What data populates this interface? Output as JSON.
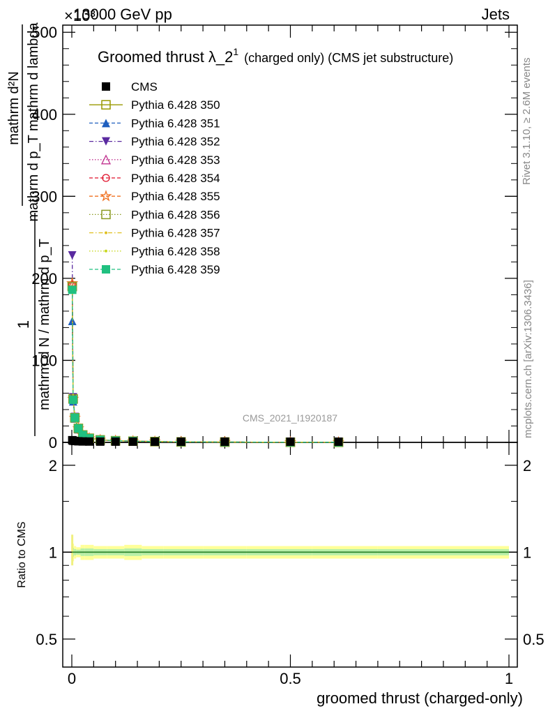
{
  "header": {
    "energy": "13000 GeV pp",
    "category": "Jets",
    "exponent": "×10³"
  },
  "side_labels": {
    "rivet": "Rivet 3.1.10, ≥ 2.6M events",
    "mcplots": "mcplots.cern.ch [arXiv:1306.3436]"
  },
  "watermark": "CMS_2021_I1920187",
  "main_plot": {
    "title": "Groomed thrust",
    "title_lambda": "λ_2",
    "title_sup": "1",
    "title_suffix": "(charged only) (CMS jet substructure)",
    "ylabel_numerator": "mathrm d²N",
    "ylabel_denominator": "mathrm d p_T mathrm d lambda",
    "ylabel_prefix_num": "1",
    "ylabel_prefix_den": "mathrm d N / mathrm d p_T",
    "yticks": [
      "0",
      "100",
      "200",
      "300",
      "400",
      "500"
    ]
  },
  "ratio_plot": {
    "ylabel": "Ratio to CMS",
    "yticks": [
      "0.5",
      "1",
      "2"
    ],
    "xticks": [
      "0",
      "0.5",
      "1"
    ],
    "xlabel": "groomed thrust (charged-only)"
  },
  "legend": [
    {
      "label": "CMS",
      "color": "#000000",
      "marker": "square-filled",
      "dash": "none"
    },
    {
      "label": "Pythia 6.428 350",
      "color": "#999900",
      "marker": "square-open",
      "dash": "solid"
    },
    {
      "label": "Pythia 6.428 351",
      "color": "#1f5fbf",
      "marker": "triangle-up-filled",
      "dash": "dashed"
    },
    {
      "label": "Pythia 6.428 352",
      "color": "#5a2aa0",
      "marker": "triangle-down-filled",
      "dash": "dashdot"
    },
    {
      "label": "Pythia 6.428 353",
      "color": "#c0308f",
      "marker": "triangle-up-open",
      "dash": "dotted"
    },
    {
      "label": "Pythia 6.428 354",
      "color": "#e0102a",
      "marker": "circle-open",
      "dash": "dashed"
    },
    {
      "label": "Pythia 6.428 355",
      "color": "#f07020",
      "marker": "star-open",
      "dash": "dashed"
    },
    {
      "label": "Pythia 6.428 356",
      "color": "#8a9a20",
      "marker": "square-open",
      "dash": "dotted"
    },
    {
      "label": "Pythia 6.428 357",
      "color": "#e0c020",
      "marker": "dot",
      "dash": "dashdot"
    },
    {
      "label": "Pythia 6.428 358",
      "color": "#c8d820",
      "marker": "dot",
      "dash": "dotted"
    },
    {
      "label": "Pythia 6.428 359",
      "color": "#20c080",
      "marker": "square-filled",
      "dash": "dashed"
    }
  ],
  "chart_data": {
    "type": "line",
    "title": "Groomed thrust λ_2^1 (charged only) (CMS jet substructure)",
    "xlabel": "groomed thrust (charged-only)",
    "ylabel": "1/(mathrm d N / mathrm d p_T) mathrm d²N / (mathrm d p_T mathrm d lambda)",
    "y_scale_factor": 1000,
    "xlim": [
      -0.02,
      1.0
    ],
    "ylim": [
      0,
      510
    ],
    "ratio_ylim_log": [
      0.4,
      2.4
    ],
    "x": [
      0.001,
      0.003,
      0.007,
      0.015,
      0.025,
      0.04,
      0.065,
      0.1,
      0.14,
      0.19,
      0.25,
      0.35,
      0.5,
      0.61
    ],
    "cms_values": [
      1.8,
      1.2,
      0.8,
      0.5,
      0.3,
      0.2,
      0.12,
      0.08,
      0.05,
      0.03,
      0.02,
      0.01,
      0.005,
      0.003
    ],
    "series": [
      {
        "name": "Pythia 6.428 350",
        "values": [
          190,
          53,
          30,
          17,
          9,
          5,
          3,
          2,
          1.5,
          1,
          0.6,
          0.4,
          0.2,
          0.15
        ]
      },
      {
        "name": "Pythia 6.428 351",
        "values": [
          148,
          50,
          29,
          16,
          9,
          5,
          3,
          2,
          1.4,
          1,
          0.6,
          0.4,
          0.2,
          0.15
        ]
      },
      {
        "name": "Pythia 6.428 352",
        "values": [
          228,
          55,
          31,
          17,
          9,
          5,
          3,
          2,
          1.5,
          1,
          0.6,
          0.4,
          0.2,
          0.15
        ]
      },
      {
        "name": "Pythia 6.428 353",
        "values": [
          192,
          53,
          30,
          17,
          9,
          5,
          3,
          2,
          1.5,
          1,
          0.6,
          0.4,
          0.2,
          0.15
        ]
      },
      {
        "name": "Pythia 6.428 354",
        "values": [
          192,
          52,
          30,
          17,
          9,
          5,
          3,
          2,
          1.5,
          1,
          0.6,
          0.4,
          0.2,
          0.15
        ]
      },
      {
        "name": "Pythia 6.428 355",
        "values": [
          194,
          53,
          30,
          17,
          9,
          5,
          3,
          2,
          1.5,
          1,
          0.6,
          0.4,
          0.2,
          0.15
        ]
      },
      {
        "name": "Pythia 6.428 356",
        "values": [
          190,
          53,
          30,
          17,
          9,
          5,
          3,
          2,
          1.5,
          1,
          0.6,
          0.4,
          0.2,
          0.15
        ]
      },
      {
        "name": "Pythia 6.428 357",
        "values": [
          189,
          52,
          30,
          17,
          9,
          5,
          3,
          2,
          1.5,
          1,
          0.6,
          0.4,
          0.2,
          0.15
        ]
      },
      {
        "name": "Pythia 6.428 358",
        "values": [
          188,
          52,
          30,
          17,
          9,
          5,
          3,
          2,
          1.5,
          1,
          0.6,
          0.4,
          0.2,
          0.15
        ]
      },
      {
        "name": "Pythia 6.428 359",
        "values": [
          186,
          52,
          30,
          17,
          9,
          5,
          3,
          2,
          1.5,
          1,
          0.6,
          0.4,
          0.2,
          0.15
        ]
      }
    ],
    "ratio_band": {
      "x_edges": [
        0.0,
        0.002,
        0.005,
        0.01,
        0.02,
        0.03,
        0.05,
        0.08,
        0.12,
        0.16,
        0.21,
        0.3,
        0.4,
        0.55,
        0.7,
        1.0
      ],
      "outer": [
        0.08,
        0.07,
        0.05,
        0.04,
        0.06,
        0.06,
        0.05,
        0.05,
        0.06,
        0.05,
        0.05,
        0.05,
        0.05,
        0.05,
        0.05
      ],
      "inner": [
        0.04,
        0.035,
        0.025,
        0.02,
        0.03,
        0.03,
        0.025,
        0.025,
        0.03,
        0.025,
        0.025,
        0.025,
        0.025,
        0.025,
        0.025
      ]
    },
    "grid": false,
    "legend_position": "top-left"
  }
}
